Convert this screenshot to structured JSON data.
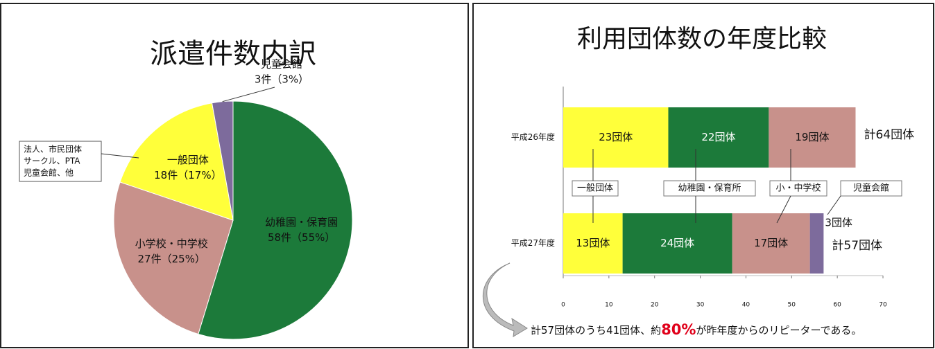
{
  "chart_data": [
    {
      "type": "pie",
      "title": "派遣件数内訳",
      "categories": [
        "幼稚園・保育園",
        "小学校・中学校",
        "一般団体",
        "児童会館"
      ],
      "values": [
        58,
        27,
        18,
        3
      ],
      "value_labels": [
        "58件（55%）",
        "27件（25%）",
        "18件（17%）",
        "3件（3%）"
      ],
      "colors": [
        "#1c7a3a",
        "#c8918b",
        "#ffff3a",
        "#7d6b9c"
      ],
      "annotation": [
        "法人、市民団体",
        "サークル、PTA",
        "児童会館、他"
      ]
    },
    {
      "type": "stacked_bar_horizontal",
      "title": "利用団体数の年度比較",
      "categories": [
        "平成26年度",
        "平成27年度"
      ],
      "series": [
        {
          "name": "一般団体",
          "color": "#ffff3a",
          "values": [
            23,
            13
          ],
          "value_labels": [
            "23団体",
            "13団体"
          ]
        },
        {
          "name": "幼稚園・保育所",
          "color": "#1c7a3a",
          "values": [
            22,
            24
          ],
          "value_labels": [
            "22団体",
            "24団体"
          ]
        },
        {
          "name": "小・中学校",
          "color": "#c8918b",
          "values": [
            19,
            17
          ],
          "value_labels": [
            "19団体",
            "17団体"
          ]
        },
        {
          "name": "児童会館",
          "color": "#7d6b9c",
          "values": [
            0,
            3
          ],
          "value_labels": [
            null,
            "3団体"
          ]
        }
      ],
      "total_labels": [
        "計64団体",
        "計57団体"
      ],
      "xlim": [
        0,
        70
      ],
      "xticks": [
        0,
        10,
        20,
        30,
        40,
        50,
        60,
        70
      ],
      "note": [
        "計57団体のうち41団体、約",
        "80%",
        "が昨年度からのリピーターである。"
      ]
    }
  ]
}
